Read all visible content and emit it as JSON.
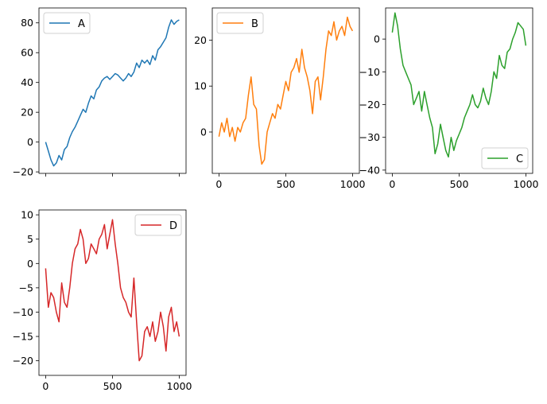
{
  "chart_data": [
    {
      "type": "line",
      "panel": "top-left",
      "series": [
        {
          "name": "A",
          "color": "#1f77b4",
          "x": [
            0,
            20,
            40,
            60,
            80,
            100,
            120,
            140,
            160,
            180,
            200,
            220,
            240,
            260,
            280,
            300,
            320,
            340,
            360,
            380,
            400,
            420,
            440,
            460,
            480,
            500,
            520,
            540,
            560,
            580,
            600,
            620,
            640,
            660,
            680,
            700,
            720,
            740,
            760,
            780,
            800,
            820,
            840,
            860,
            880,
            900,
            920,
            940,
            960,
            980,
            999
          ],
          "y": [
            0,
            -6,
            -12,
            -16,
            -14,
            -9,
            -12,
            -5,
            -3,
            3,
            7,
            10,
            14,
            18,
            22,
            20,
            26,
            31,
            29,
            35,
            37,
            41,
            43,
            44,
            42,
            44,
            46,
            45,
            43,
            41,
            43,
            46,
            44,
            47,
            53,
            50,
            55,
            53,
            55,
            52,
            58,
            55,
            62,
            64,
            67,
            70,
            77,
            82,
            79,
            81,
            82
          ]
        }
      ],
      "xlim": [
        -50,
        1050
      ],
      "ylim": [
        -21,
        90
      ],
      "xticks": [
        0,
        500,
        1000
      ],
      "show_xtick_labels": false,
      "yticks": [
        -20,
        0,
        20,
        40,
        60,
        80
      ],
      "legend_position": "upper left"
    },
    {
      "type": "line",
      "panel": "top-middle",
      "series": [
        {
          "name": "B",
          "color": "#ff7f0e",
          "x": [
            0,
            20,
            40,
            60,
            80,
            100,
            120,
            140,
            160,
            180,
            200,
            220,
            240,
            260,
            280,
            300,
            320,
            340,
            360,
            380,
            400,
            420,
            440,
            460,
            480,
            500,
            520,
            540,
            560,
            580,
            600,
            620,
            640,
            660,
            680,
            700,
            720,
            740,
            760,
            780,
            800,
            820,
            840,
            860,
            880,
            900,
            920,
            940,
            960,
            980,
            999
          ],
          "y": [
            -1,
            2,
            0,
            3,
            -1,
            1,
            -2,
            1,
            0,
            2,
            3,
            8,
            12,
            6,
            5,
            -3,
            -7,
            -6,
            0,
            2,
            4,
            3,
            6,
            5,
            8,
            11,
            9,
            13,
            14,
            16,
            13,
            18,
            14,
            12,
            9,
            4,
            11,
            12,
            7,
            12,
            18,
            22,
            21,
            24,
            20,
            22,
            23,
            21,
            25,
            23,
            22
          ]
        }
      ],
      "xlim": [
        -50,
        1050
      ],
      "ylim": [
        -9,
        27
      ],
      "xticks": [
        0,
        500,
        1000
      ],
      "show_xtick_labels": true,
      "yticks": [
        0,
        10,
        20
      ],
      "legend_position": "upper left"
    },
    {
      "type": "line",
      "panel": "top-right",
      "series": [
        {
          "name": "C",
          "color": "#2ca02c",
          "x": [
            0,
            20,
            40,
            60,
            80,
            100,
            120,
            140,
            160,
            180,
            200,
            220,
            240,
            260,
            280,
            300,
            320,
            340,
            360,
            380,
            400,
            420,
            440,
            460,
            480,
            500,
            520,
            540,
            560,
            580,
            600,
            620,
            640,
            660,
            680,
            700,
            720,
            740,
            760,
            780,
            800,
            820,
            840,
            860,
            880,
            900,
            920,
            940,
            960,
            980,
            999
          ],
          "y": [
            2,
            8,
            4,
            -3,
            -8,
            -10,
            -12,
            -14,
            -20,
            -18,
            -16,
            -22,
            -16,
            -20,
            -24,
            -27,
            -35,
            -32,
            -26,
            -30,
            -34,
            -36,
            -30,
            -34,
            -31,
            -29,
            -27,
            -24,
            -22,
            -20,
            -17,
            -20,
            -21,
            -19,
            -15,
            -18,
            -20,
            -16,
            -10,
            -12,
            -5,
            -8,
            -9,
            -4,
            -3,
            0,
            2,
            5,
            4,
            3,
            -2
          ]
        }
      ],
      "xlim": [
        -50,
        1050
      ],
      "ylim": [
        -41,
        9.5
      ],
      "xticks": [
        0,
        500,
        1000
      ],
      "show_xtick_labels": true,
      "yticks": [
        -40,
        -30,
        -20,
        -10,
        0
      ],
      "legend_position": "lower right"
    },
    {
      "type": "line",
      "panel": "bottom-left",
      "series": [
        {
          "name": "D",
          "color": "#d62728",
          "x": [
            0,
            20,
            40,
            60,
            80,
            100,
            120,
            140,
            160,
            180,
            200,
            220,
            240,
            260,
            280,
            300,
            320,
            340,
            360,
            380,
            400,
            420,
            440,
            460,
            480,
            500,
            520,
            540,
            560,
            580,
            600,
            620,
            640,
            660,
            680,
            700,
            720,
            740,
            760,
            780,
            800,
            820,
            840,
            860,
            880,
            900,
            920,
            940,
            960,
            980,
            999
          ],
          "y": [
            -1,
            -9,
            -6,
            -7,
            -10,
            -12,
            -4,
            -8,
            -9,
            -5,
            0,
            3,
            4,
            7,
            5,
            0,
            1,
            4,
            3,
            2,
            5,
            6,
            8,
            3,
            6,
            9,
            4,
            0,
            -5,
            -7,
            -8,
            -10,
            -11,
            -3,
            -12,
            -20,
            -19,
            -14,
            -13,
            -15,
            -12,
            -16,
            -14,
            -10,
            -13,
            -18,
            -11,
            -9,
            -14,
            -12,
            -15
          ]
        }
      ],
      "xlim": [
        -50,
        1050
      ],
      "ylim": [
        -23,
        11
      ],
      "xticks": [
        0,
        500,
        1000
      ],
      "show_xtick_labels": true,
      "yticks": [
        -20,
        -15,
        -10,
        -5,
        0,
        5,
        10
      ],
      "legend_position": "upper right"
    }
  ]
}
